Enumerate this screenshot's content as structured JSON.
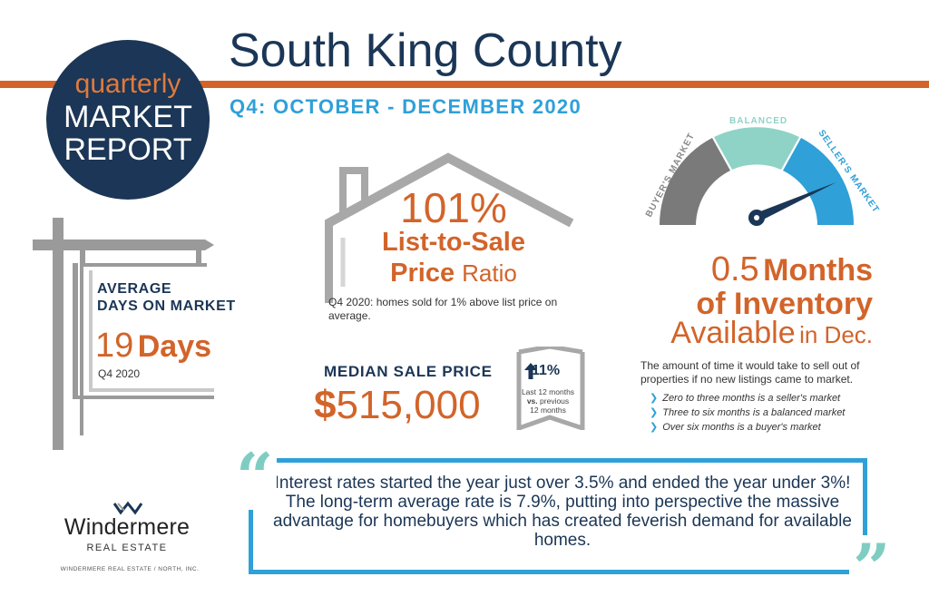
{
  "header": {
    "badge": {
      "line1": "quarterly",
      "line2": "MARKET",
      "line3": "REPORT"
    },
    "title": "South King County",
    "subtitle": "Q4: OCTOBER - DECEMBER 2020",
    "colors": {
      "navy": "#1b3656",
      "orange": "#d2642a",
      "blue": "#2fa0d8",
      "teal": "#7fcdc2",
      "gray": "#9a9a9a"
    }
  },
  "days_on_market": {
    "label_line1": "AVERAGE",
    "label_line2": "DAYS ON MARKET",
    "value_number": "19",
    "value_unit": "Days",
    "period": "Q4 2020",
    "icon": "sign-post-icon"
  },
  "list_to_sale": {
    "percent": "101%",
    "line1": "List-to-Sale",
    "line2_bold": "Price",
    "line2_light": "Ratio",
    "note": "Q4 2020: homes sold for 1% above list price on average.",
    "icon": "house-outline-icon"
  },
  "median_price": {
    "label": "MEDIAN SALE PRICE",
    "dollar": "$",
    "value": "515,000",
    "change": "11%",
    "change_icon": "arrow-up-icon",
    "change_note_1": "Last 12 months",
    "change_note_vs": "vs.",
    "change_note_2": "previous",
    "change_note_3": "12 months"
  },
  "inventory": {
    "gauge": {
      "labels": [
        "BUYER'S MARKET",
        "BALANCED",
        "SELLER'S MARKET"
      ],
      "colors": [
        "#7a7a7a",
        "#8fd3c7",
        "#2fa0d8"
      ],
      "needle_value_months": 0.5
    },
    "value": "0.5",
    "line1_word": "Months",
    "line2": "of Inventory",
    "line3_a": "Available",
    "line3_b": "in Dec.",
    "description": "The amount of time it would take to sell out of properties if no new listings came to market.",
    "bullets": [
      "Zero to three months is a seller's market",
      "Three to six months is a balanced market",
      "Over six months is a buyer's market"
    ]
  },
  "quote": {
    "open_mark": "“",
    "close_mark": "”",
    "text": "Interest rates started the year just over 3.5% and ended the year under 3%! The long-term average rate is 7.9%, putting into perspective the massive advantage for homebuyers which has created feverish demand for available homes."
  },
  "logo": {
    "name": "Windermere",
    "sub": "REAL ESTATE",
    "footer": "WINDERMERE REAL ESTATE / NORTH, INC.",
    "icon": "windermere-logo-icon"
  }
}
